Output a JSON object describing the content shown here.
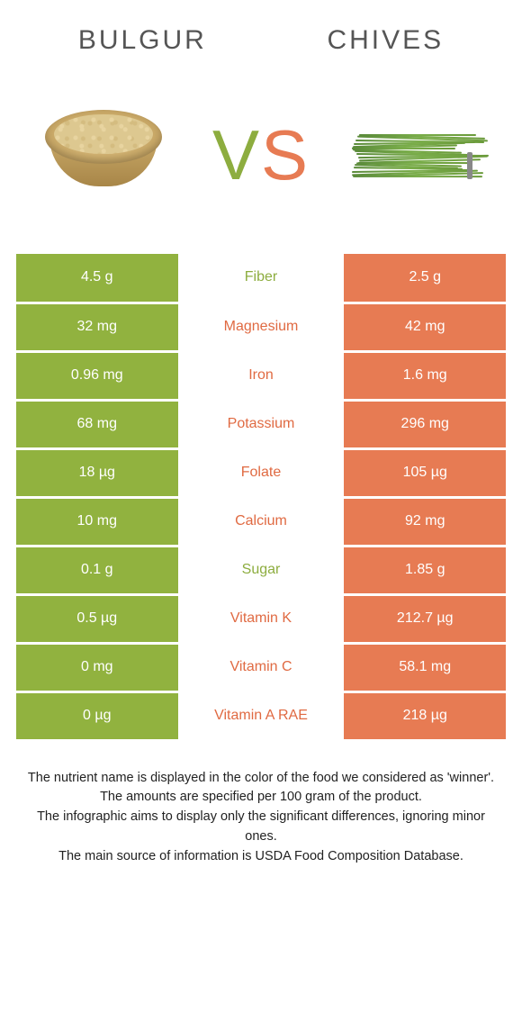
{
  "colors": {
    "left": "#91b23f",
    "right": "#e77b53",
    "left_text": "#8dad3f",
    "right_text": "#e06a42",
    "bg": "#ffffff"
  },
  "foods": {
    "left": {
      "name": "BULGUR"
    },
    "right": {
      "name": "CHIVES"
    }
  },
  "vs": {
    "v": "V",
    "s": "S"
  },
  "rows": [
    {
      "label": "Fiber",
      "left": "4.5 g",
      "right": "2.5 g",
      "winner": "left"
    },
    {
      "label": "Magnesium",
      "left": "32 mg",
      "right": "42 mg",
      "winner": "right"
    },
    {
      "label": "Iron",
      "left": "0.96 mg",
      "right": "1.6 mg",
      "winner": "right"
    },
    {
      "label": "Potassium",
      "left": "68 mg",
      "right": "296 mg",
      "winner": "right"
    },
    {
      "label": "Folate",
      "left": "18 µg",
      "right": "105 µg",
      "winner": "right"
    },
    {
      "label": "Calcium",
      "left": "10 mg",
      "right": "92 mg",
      "winner": "right"
    },
    {
      "label": "Sugar",
      "left": "0.1 g",
      "right": "1.85 g",
      "winner": "left"
    },
    {
      "label": "Vitamin K",
      "left": "0.5 µg",
      "right": "212.7 µg",
      "winner": "right"
    },
    {
      "label": "Vitamin C",
      "left": "0 mg",
      "right": "58.1 mg",
      "winner": "right"
    },
    {
      "label": "Vitamin A RAE",
      "left": "0 µg",
      "right": "218 µg",
      "winner": "right"
    }
  ],
  "footer": {
    "l1": "The nutrient name is displayed in the color of the food we considered as 'winner'.",
    "l2": "The amounts are specified per 100 gram of the product.",
    "l3": "The infographic aims to display only the significant differences, ignoring minor ones.",
    "l4": "The main source of information is USDA Food Composition Database."
  }
}
